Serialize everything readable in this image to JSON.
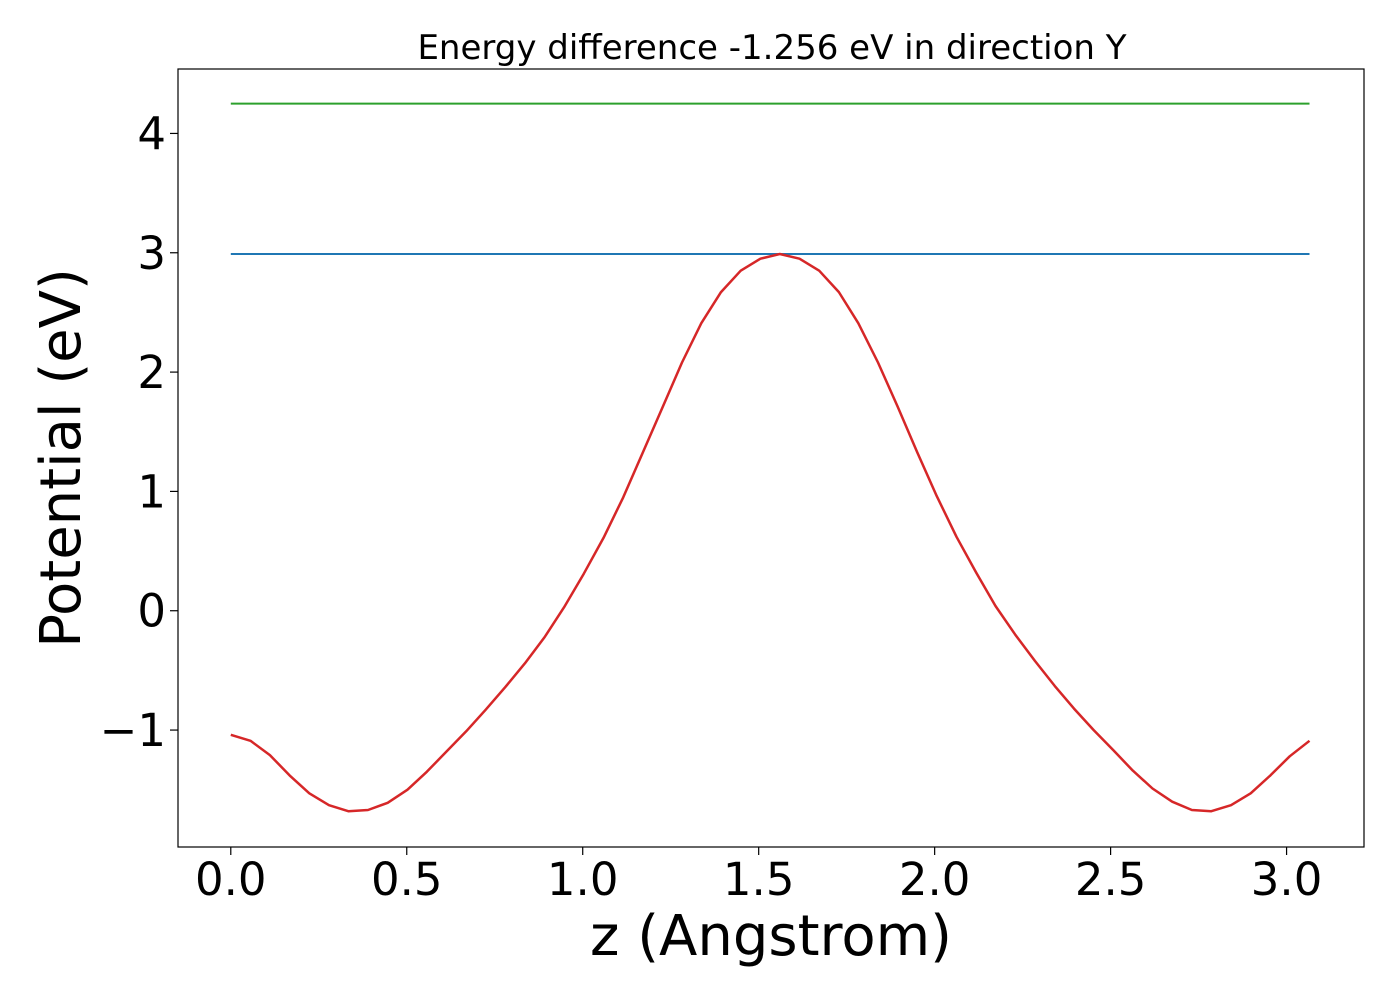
{
  "chart_data": {
    "type": "line",
    "title": "Energy difference -1.256 eV in direction Y",
    "xlabel": "z (Angstrom)",
    "ylabel": "Potential (eV)",
    "xlim": [
      -0.15,
      3.22
    ],
    "ylim": [
      -1.98,
      4.54
    ],
    "xticks": [
      0.0,
      0.5,
      1.0,
      1.5,
      2.0,
      2.5,
      3.0
    ],
    "xtick_labels": [
      "0.0",
      "0.5",
      "1.0",
      "1.5",
      "2.0",
      "2.5",
      "3.0"
    ],
    "yticks": [
      -1,
      0,
      1,
      2,
      3,
      4
    ],
    "ytick_labels": [
      "−1",
      "0",
      "1",
      "2",
      "3",
      "4"
    ],
    "grid": false,
    "series": [
      {
        "color": "#2ca02c",
        "x": [
          0.0,
          3.065
        ],
        "y": [
          4.25,
          4.25
        ]
      },
      {
        "color": "#1f77b4",
        "x": [
          0.0,
          3.065
        ],
        "y": [
          2.99,
          2.99
        ]
      },
      {
        "color": "#d62728",
        "x": [
          0.0,
          0.056,
          0.111,
          0.167,
          0.223,
          0.279,
          0.334,
          0.39,
          0.446,
          0.502,
          0.557,
          0.613,
          0.669,
          0.724,
          0.78,
          0.836,
          0.892,
          0.947,
          1.003,
          1.059,
          1.115,
          1.17,
          1.226,
          1.282,
          1.337,
          1.393,
          1.449,
          1.505,
          1.56,
          1.616,
          1.672,
          1.728,
          1.783,
          1.839,
          1.895,
          1.95,
          2.006,
          2.062,
          2.118,
          2.173,
          2.229,
          2.285,
          2.341,
          2.396,
          2.452,
          2.508,
          2.563,
          2.619,
          2.675,
          2.731,
          2.786,
          2.842,
          2.898,
          2.954,
          3.009,
          3.065
        ],
        "y": [
          -1.04,
          -1.09,
          -1.21,
          -1.38,
          -1.53,
          -1.63,
          -1.68,
          -1.67,
          -1.61,
          -1.5,
          -1.35,
          -1.18,
          -1.01,
          -0.83,
          -0.64,
          -0.44,
          -0.22,
          0.03,
          0.31,
          0.61,
          0.95,
          1.32,
          1.7,
          2.08,
          2.41,
          2.67,
          2.85,
          2.95,
          2.99,
          2.95,
          2.85,
          2.67,
          2.41,
          2.08,
          1.71,
          1.33,
          0.96,
          0.62,
          0.32,
          0.04,
          -0.2,
          -0.42,
          -0.63,
          -0.82,
          -1.0,
          -1.17,
          -1.34,
          -1.49,
          -1.6,
          -1.67,
          -1.68,
          -1.63,
          -1.53,
          -1.38,
          -1.22,
          -1.09
        ]
      }
    ]
  }
}
